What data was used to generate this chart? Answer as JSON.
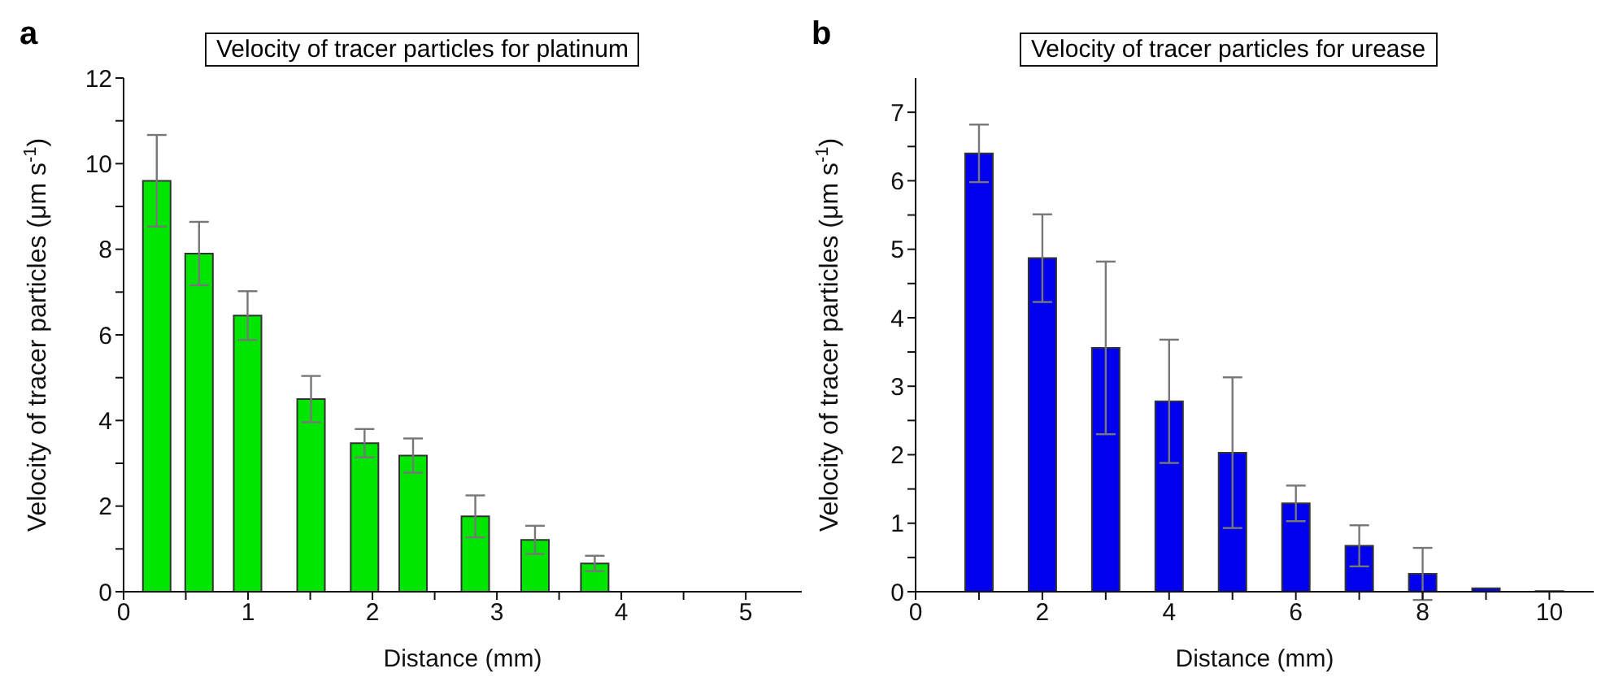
{
  "chart_data": [
    {
      "type": "bar",
      "title": "Velocity of tracer particles for platinum",
      "xlabel": "Distance (mm)",
      "ylabel": "Velocity of tracer particles (μm s$^{-1}$)",
      "annotations": [
        "a"
      ],
      "x": [
        0.26,
        0.6,
        0.99,
        1.5,
        1.93,
        2.32,
        2.82,
        3.3,
        3.78
      ],
      "series": [
        {
          "color": "#00e600",
          "values": [
            9.6,
            7.9,
            6.45,
            4.5,
            3.47,
            3.18,
            1.76,
            1.21,
            0.66
          ],
          "errors": [
            1.07,
            0.74,
            0.57,
            0.54,
            0.33,
            0.4,
            0.49,
            0.33,
            0.18
          ]
        }
      ],
      "xlim": [
        0,
        5.45
      ],
      "xticks": [
        0,
        {
          "value": 0.5,
          "label": null
        },
        1,
        {
          "value": 1.5,
          "label": null
        },
        2,
        {
          "value": 2.5,
          "label": null
        },
        3,
        {
          "value": 3.5,
          "label": null
        },
        4,
        {
          "value": 4.5,
          "label": null
        },
        5
      ],
      "ylim": [
        0,
        12
      ],
      "yticks": [
        0,
        {
          "value": 1,
          "label": null
        },
        2,
        {
          "value": 3,
          "label": null
        },
        4,
        {
          "value": 5,
          "label": null
        },
        6,
        {
          "value": 7,
          "label": null
        },
        8,
        {
          "value": 9,
          "label": null
        },
        10,
        {
          "value": 11,
          "label": null
        },
        12
      ]
    },
    {
      "type": "bar",
      "title": "Velocity of tracer particles for urease",
      "xlabel": "Distance (mm)",
      "ylabel": "Velocity of tracer particles (μm s$^{-1}$)",
      "annotations": [
        "b"
      ],
      "x": [
        1,
        2,
        3,
        4,
        5,
        6,
        7,
        8,
        9,
        10
      ],
      "series": [
        {
          "color": "#0000ee",
          "values": [
            6.4,
            4.87,
            3.56,
            2.78,
            2.03,
            1.29,
            0.67,
            0.26,
            0.05,
            0.01
          ],
          "errors": [
            0.42,
            0.64,
            1.26,
            0.9,
            1.1,
            0.26,
            0.3,
            0.38,
            null,
            null
          ]
        }
      ],
      "xlim": [
        0,
        10.7
      ],
      "xticks": [
        0,
        {
          "value": 1,
          "label": null
        },
        2,
        {
          "value": 3,
          "label": null
        },
        4,
        {
          "value": 5,
          "label": null
        },
        6,
        {
          "value": 7,
          "label": null
        },
        8,
        {
          "value": 9,
          "label": null
        },
        10
      ],
      "ylim": [
        0,
        7.5
      ],
      "yticks": [
        0,
        {
          "value": 0.5,
          "label": null
        },
        1,
        {
          "value": 1.5,
          "label": null
        },
        2,
        {
          "value": 2.5,
          "label": null
        },
        3,
        {
          "value": 3.5,
          "label": null
        },
        4,
        {
          "value": 4.5,
          "label": null
        },
        5,
        {
          "value": 5.5,
          "label": null
        },
        6,
        {
          "value": 6.5,
          "label": null
        },
        7
      ]
    }
  ]
}
